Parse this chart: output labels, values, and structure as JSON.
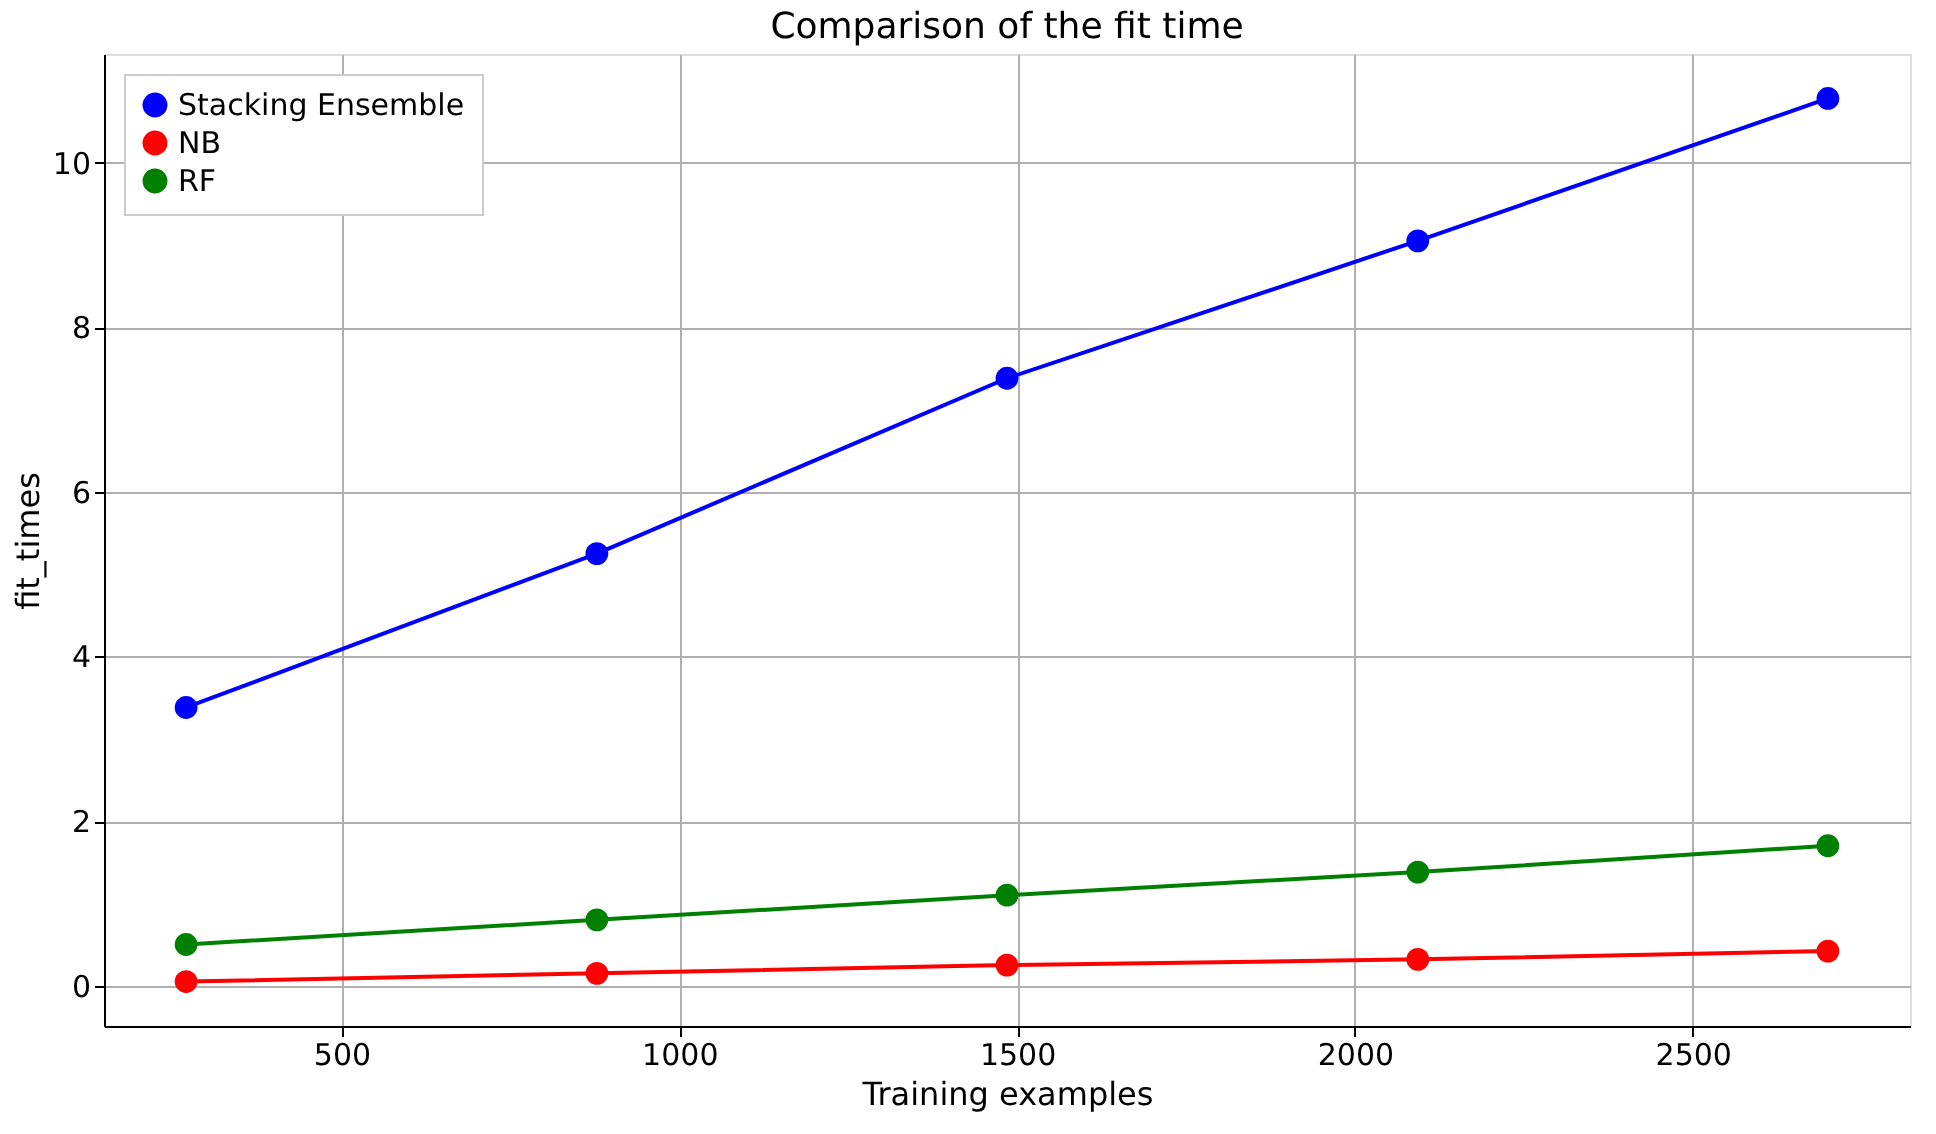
{
  "chart_data": {
    "type": "line",
    "title": "Comparison of the fit time",
    "xlabel": "Training examples",
    "ylabel": "fit_times",
    "x": [
      270,
      878,
      1485,
      2093,
      2700
    ],
    "series": [
      {
        "name": "Stacking Ensemble",
        "color": "#0000ff",
        "values": [
          3.38,
          5.25,
          7.38,
          9.05,
          10.78
        ]
      },
      {
        "name": "NB",
        "color": "#ff0000",
        "values": [
          0.05,
          0.15,
          0.25,
          0.32,
          0.42
        ]
      },
      {
        "name": "RF",
        "color": "#008000",
        "values": [
          0.5,
          0.8,
          1.1,
          1.38,
          1.7
        ]
      }
    ],
    "xlim": [
      148.5,
      2821.5
    ],
    "ylim": [
      -0.49,
      11.32
    ],
    "xticks": [
      500,
      1000,
      1500,
      2000,
      2500
    ],
    "yticks": [
      0,
      2,
      4,
      6,
      8,
      10
    ],
    "grid": true,
    "legend": "top left",
    "marker": "circle",
    "line_style": "solid"
  }
}
